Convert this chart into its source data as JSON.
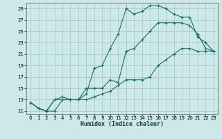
{
  "bg_color": "#cce8e8",
  "grid_color": "#aacccc",
  "line_color": "#1a6b6b",
  "xlabel": "Humidex (Indice chaleur)",
  "xlim": [
    -0.5,
    23.5
  ],
  "ylim": [
    10.5,
    30.0
  ],
  "yticks": [
    11,
    13,
    15,
    17,
    19,
    21,
    23,
    25,
    27,
    29
  ],
  "xticks": [
    0,
    1,
    2,
    3,
    4,
    5,
    6,
    7,
    8,
    9,
    10,
    11,
    12,
    13,
    14,
    15,
    16,
    17,
    18,
    19,
    20,
    21,
    22,
    23
  ],
  "series1_x": [
    0,
    1,
    2,
    3,
    4,
    5,
    6,
    7,
    8,
    9,
    10,
    11,
    12,
    13,
    14,
    15,
    16,
    17,
    18,
    19,
    20,
    21,
    22,
    23
  ],
  "series1_y": [
    12.5,
    11.5,
    11.0,
    11.0,
    13.0,
    13.0,
    13.0,
    13.0,
    13.5,
    14.0,
    14.5,
    15.5,
    16.5,
    16.5,
    16.5,
    17.0,
    19.0,
    20.0,
    21.0,
    22.0,
    22.0,
    21.5,
    21.5,
    21.5
  ],
  "series2_x": [
    0,
    1,
    2,
    3,
    4,
    5,
    6,
    7,
    8,
    9,
    10,
    11,
    12,
    13,
    14,
    15,
    16,
    17,
    18,
    19,
    20,
    21,
    22,
    23
  ],
  "series2_y": [
    12.5,
    11.5,
    11.0,
    13.0,
    13.5,
    13.0,
    13.0,
    14.0,
    18.5,
    19.0,
    22.0,
    24.5,
    29.0,
    28.0,
    28.5,
    29.5,
    29.5,
    29.0,
    28.0,
    27.5,
    27.5,
    24.0,
    23.0,
    21.5
  ],
  "series3_x": [
    0,
    1,
    2,
    3,
    4,
    5,
    6,
    7,
    8,
    9,
    10,
    11,
    12,
    13,
    14,
    15,
    16,
    17,
    18,
    19,
    20,
    21,
    22,
    23
  ],
  "series3_y": [
    12.5,
    11.5,
    11.0,
    13.0,
    13.0,
    13.0,
    13.0,
    15.0,
    15.0,
    15.0,
    16.5,
    16.0,
    21.5,
    22.0,
    23.5,
    25.0,
    26.5,
    26.5,
    26.5,
    26.5,
    26.0,
    24.5,
    22.0,
    21.5
  ]
}
